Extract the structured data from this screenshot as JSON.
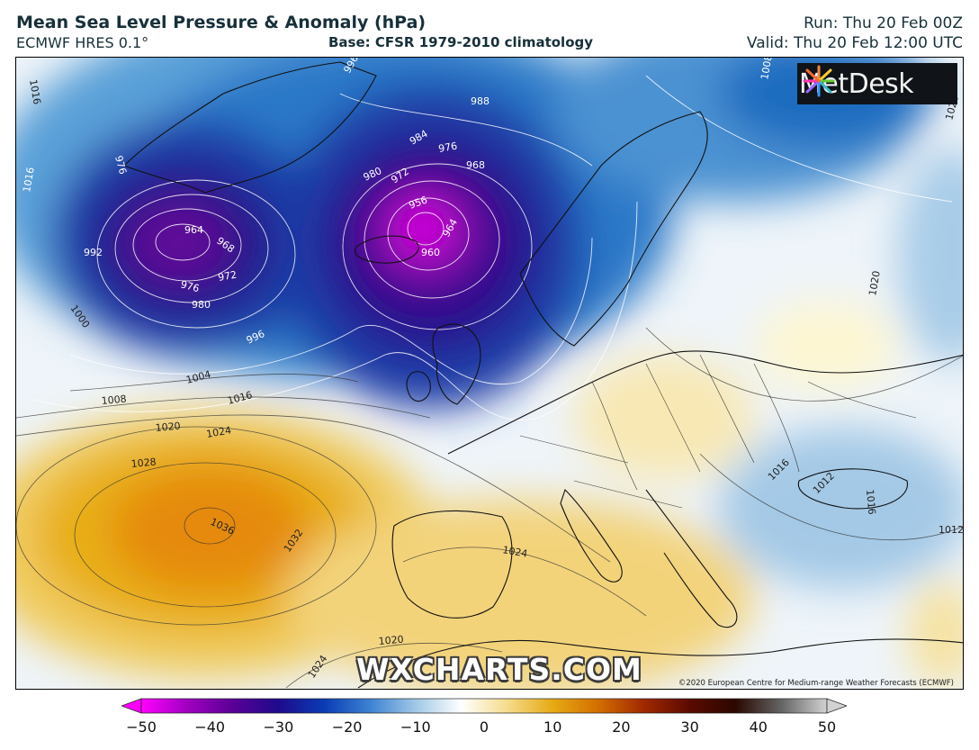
{
  "header": {
    "title": "Mean Sea Level Pressure & Anomaly (hPa)",
    "model": "ECMWF HRES 0.1°",
    "base": "Base: CFSR 1979-2010 climatology",
    "run": "Run: Thu 20 Feb 00Z",
    "valid": "Valid: Thu 20 Feb 12:00 UTC"
  },
  "map": {
    "logo_text": "MetDesk",
    "watermark": "WXCHARTS.COM",
    "copyright": "©2020 European Centre for Medium-range Weather Forecasts (ECMWF)",
    "isobar_labels": [
      "1016",
      "1016",
      "992",
      "976",
      "964",
      "968",
      "972",
      "976",
      "980",
      "1000",
      "996",
      "1004",
      "1008",
      "1016",
      "1020",
      "1024",
      "1028",
      "1036",
      "1032",
      "1024",
      "1020",
      "1024",
      "996",
      "988",
      "984",
      "976",
      "968",
      "980",
      "972",
      "956",
      "964",
      "960",
      "1008",
      "1020",
      "1016",
      "1012",
      "1016",
      "1012",
      "1020"
    ],
    "systems": {
      "low_west": "964",
      "low_east": "956",
      "high": "1036"
    }
  },
  "colorbar": {
    "ticks": [
      "−50",
      "−40",
      "−30",
      "−20",
      "−10",
      "0",
      "10",
      "20",
      "30",
      "40",
      "50"
    ],
    "min": -50,
    "max": 50,
    "stops": [
      "#ff00ff",
      "#a000c0",
      "#5a0096",
      "#1e0a8c",
      "#0a3cb4",
      "#3c82d2",
      "#a0c8e6",
      "#ffffff",
      "#f5dc8c",
      "#e6aa14",
      "#d26e00",
      "#a02800",
      "#5a0a00",
      "#2a0800",
      "#646464",
      "#d2d2d2"
    ]
  }
}
